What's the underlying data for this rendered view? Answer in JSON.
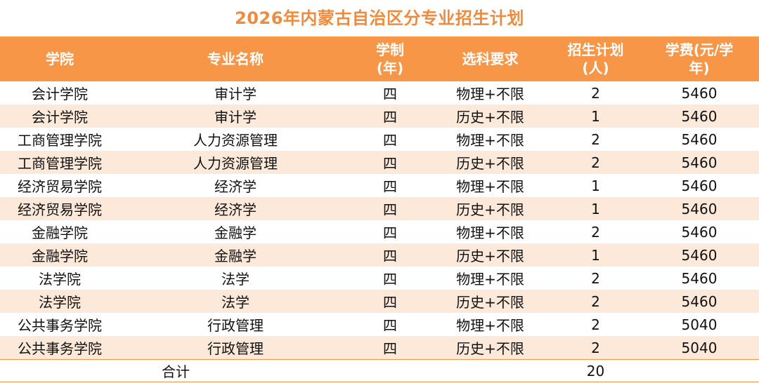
{
  "title": "2026年内蒙古自治区分专业招生计划",
  "colors": {
    "title": "#F08A3C",
    "header_bg": "#F79646",
    "stripe_bg": "#FDE9D9"
  },
  "table": {
    "headers": {
      "college": "学院",
      "major": "专业名称",
      "duration_line1": "学制",
      "duration_line2": "(年)",
      "requirement": "选科要求",
      "plan_line1": "招生计划",
      "plan_line2": "(人)",
      "fee_line1": "学费(元/学",
      "fee_line2": "年)"
    },
    "rows": [
      {
        "college": "会计学院",
        "major": "审计学",
        "duration": "四",
        "requirement": "物理+不限",
        "plan": "2",
        "fee": "5460"
      },
      {
        "college": "会计学院",
        "major": "审计学",
        "duration": "四",
        "requirement": "历史+不限",
        "plan": "1",
        "fee": "5460"
      },
      {
        "college": "工商管理学院",
        "major": "人力资源管理",
        "duration": "四",
        "requirement": "物理+不限",
        "plan": "2",
        "fee": "5460"
      },
      {
        "college": "工商管理学院",
        "major": "人力资源管理",
        "duration": "四",
        "requirement": "历史+不限",
        "plan": "2",
        "fee": "5460"
      },
      {
        "college": "经济贸易学院",
        "major": "经济学",
        "duration": "四",
        "requirement": "物理+不限",
        "plan": "1",
        "fee": "5460"
      },
      {
        "college": "经济贸易学院",
        "major": "经济学",
        "duration": "四",
        "requirement": "历史+不限",
        "plan": "1",
        "fee": "5460"
      },
      {
        "college": "金融学院",
        "major": "金融学",
        "duration": "四",
        "requirement": "物理+不限",
        "plan": "2",
        "fee": "5460"
      },
      {
        "college": "金融学院",
        "major": "金融学",
        "duration": "四",
        "requirement": "历史+不限",
        "plan": "1",
        "fee": "5460"
      },
      {
        "college": "法学院",
        "major": "法学",
        "duration": "四",
        "requirement": "物理+不限",
        "plan": "2",
        "fee": "5460"
      },
      {
        "college": "法学院",
        "major": "法学",
        "duration": "四",
        "requirement": "历史+不限",
        "plan": "2",
        "fee": "5460"
      },
      {
        "college": "公共事务学院",
        "major": "行政管理",
        "duration": "四",
        "requirement": "物理+不限",
        "plan": "2",
        "fee": "5040"
      },
      {
        "college": "公共事务学院",
        "major": "行政管理",
        "duration": "四",
        "requirement": "历史+不限",
        "plan": "2",
        "fee": "5040"
      }
    ],
    "total": {
      "label": "合计",
      "plan": "20"
    }
  }
}
